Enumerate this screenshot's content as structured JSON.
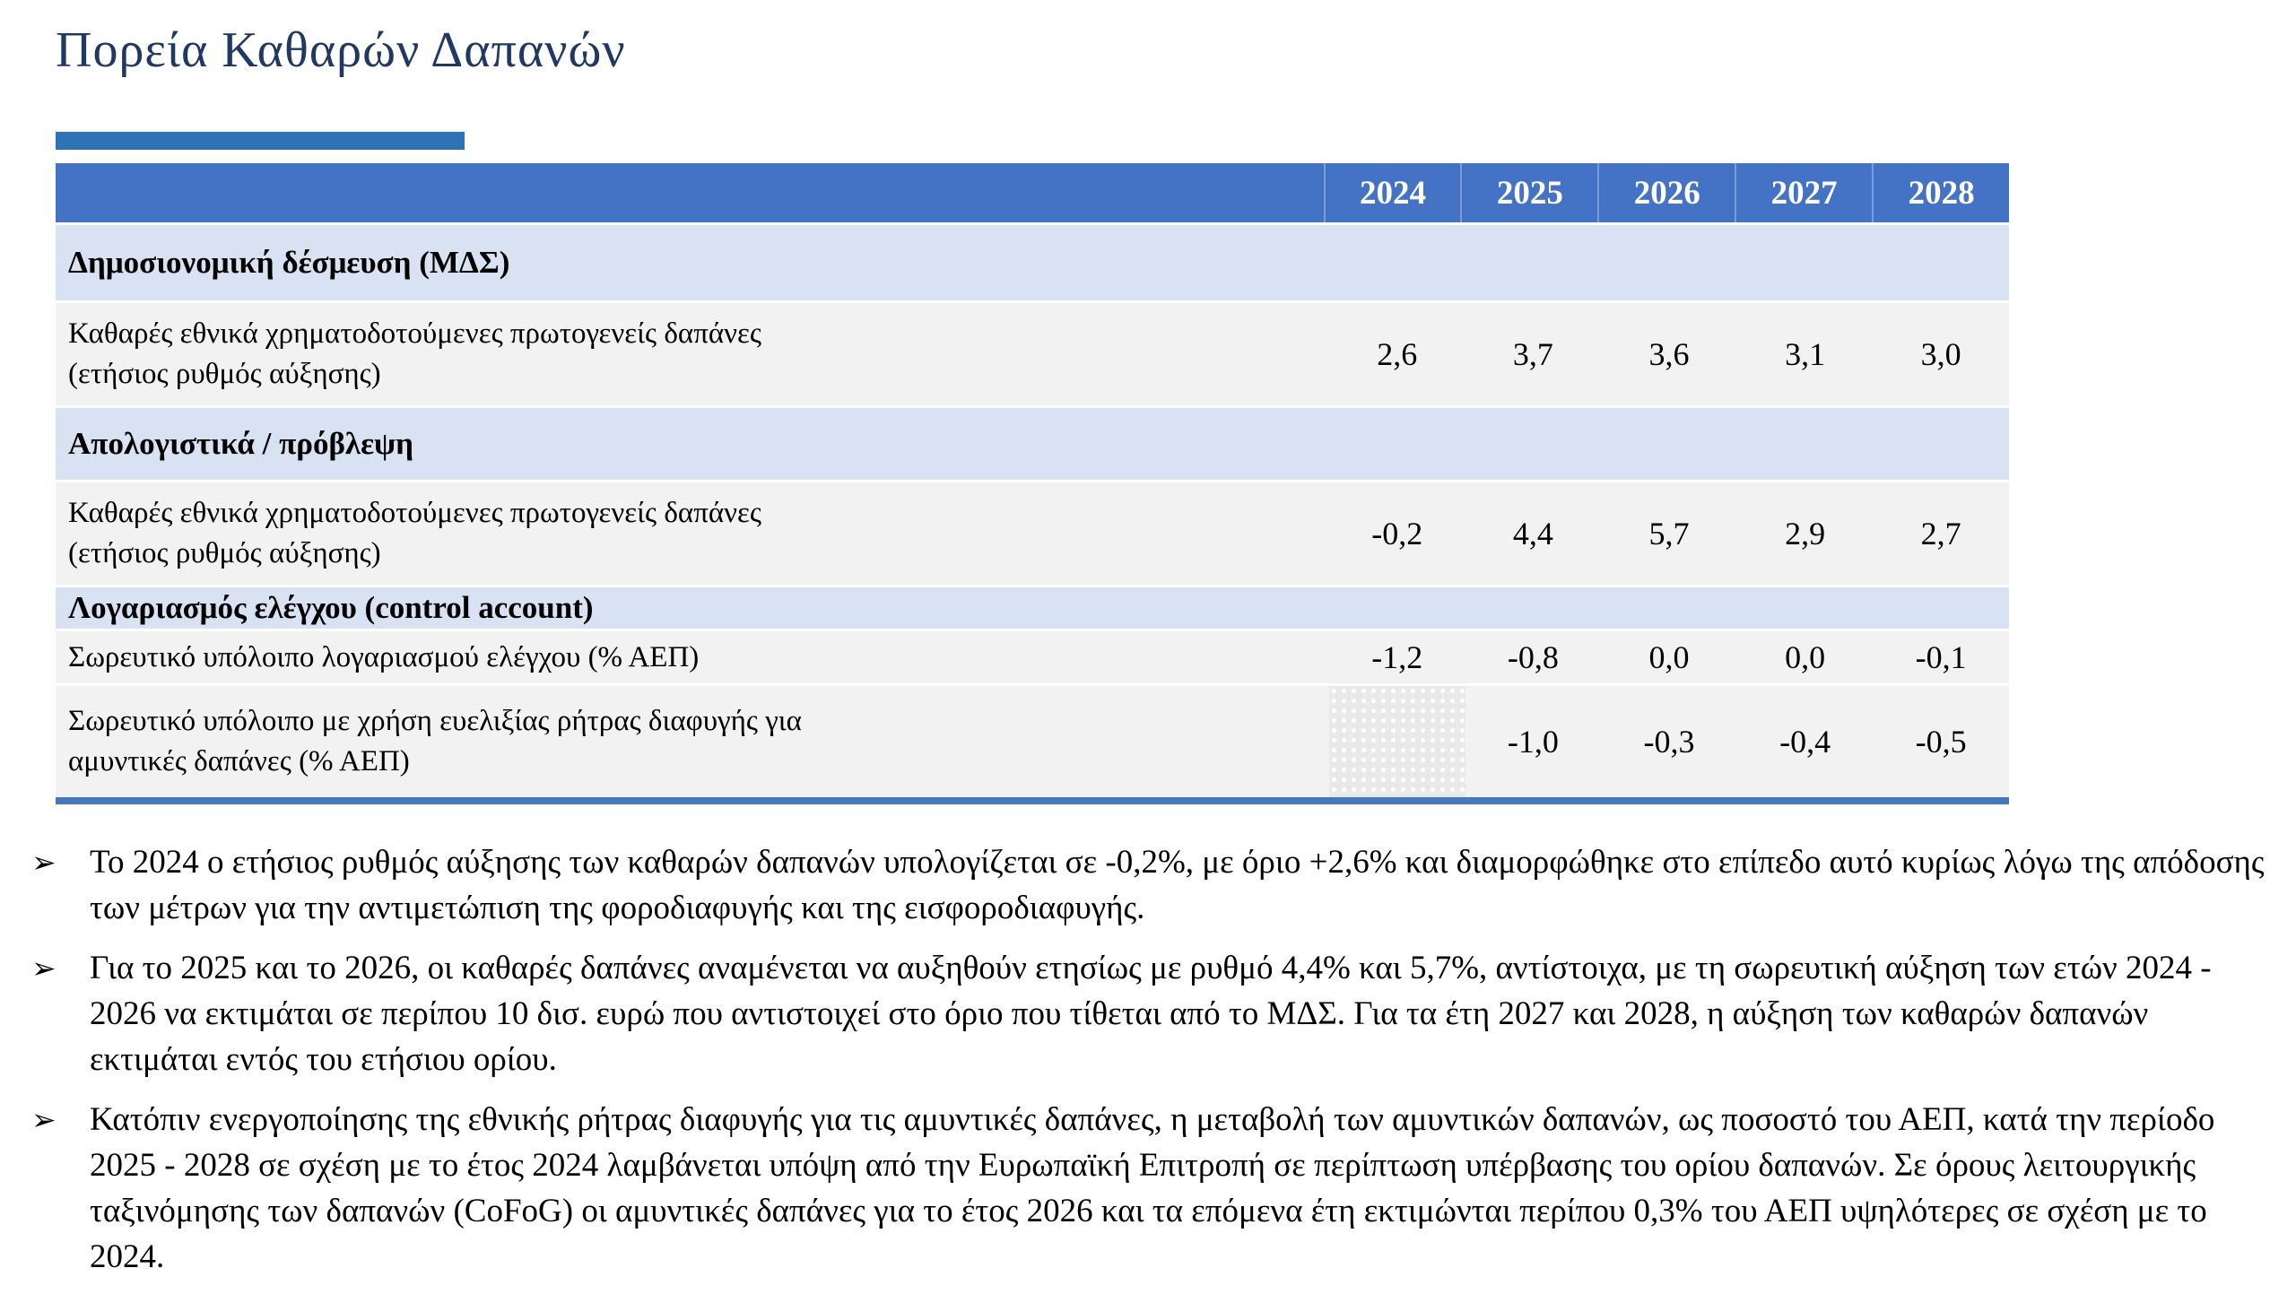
{
  "page": {
    "title": "Πορεία Καθαρών Δαπανών"
  },
  "colors": {
    "title_text": "#1F3864",
    "accent_bar": "#2E74B5",
    "table_header_bg": "#4472C4",
    "section_row_bg": "#D9E2F3",
    "data_row_bg": "#F2F2F2",
    "bottom_rule": "#4778BE",
    "hatched_cell_bg": "#E9E9E9"
  },
  "table": {
    "year_headers": [
      "2024",
      "2025",
      "2026",
      "2027",
      "2028"
    ],
    "rows": [
      {
        "type": "section",
        "label": "Δημοσιονομική δέσμευση (ΜΔΣ)"
      },
      {
        "type": "data",
        "lines": [
          "Καθαρές εθνικά χρηματοδοτούμενες πρωτογενείς δαπάνες",
          "(ετήσιος ρυθμός αύξησης)"
        ],
        "values": [
          "2,6",
          "3,7",
          "3,6",
          "3,1",
          "3,0"
        ]
      },
      {
        "type": "section",
        "label": "Απολογιστικά / πρόβλεψη"
      },
      {
        "type": "data",
        "lines": [
          "Καθαρές εθνικά χρηματοδοτούμενες πρωτογενείς δαπάνες",
          "(ετήσιος ρυθμός αύξησης)"
        ],
        "values": [
          "-0,2",
          "4,4",
          "5,7",
          "2,9",
          "2,7"
        ]
      },
      {
        "type": "section",
        "label": "Λογαριασμός ελέγχου (control account)"
      },
      {
        "type": "data",
        "lines": [
          "Σωρευτικό υπόλοιπο λογαριασμού ελέγχου (% ΑΕΠ)"
        ],
        "values": [
          "-1,2",
          "-0,8",
          "0,0",
          "0,0",
          "-0,1"
        ]
      },
      {
        "type": "data",
        "lines": [
          "Σωρευτικό υπόλοιπο με χρήση ευελιξίας ρήτρας διαφυγής για",
          "αμυντικές δαπάνες  (% ΑΕΠ)"
        ],
        "values": [
          "",
          "-1,0",
          "-0,3",
          "-0,4",
          "-0,5"
        ],
        "first_cell_fill": "dotted-hatch-no-value"
      }
    ]
  },
  "bullets": {
    "marker": "➢",
    "items": [
      {
        "text": "Το 2024 ο ετήσιος ρυθμός αύξησης των καθαρών δαπανών υπολογίζεται σε -0,2%, με όριο +2,6% και διαμορφώθηκε στο επίπεδο αυτό κυρίως λόγω της απόδοσης των μέτρων για την αντιμετώπιση της φοροδιαφυγής και της εισφοροδιαφυγής."
      },
      {
        "text": "Για το 2025 και το 2026, οι καθαρές δαπάνες αναμένεται να αυξηθούν ετησίως με ρυθμό 4,4% και 5,7%, αντίστοιχα, με τη σωρευτική αύξηση των ετών 2024 - 2026 να εκτιμάται σε περίπου 10 δισ. ευρώ που αντιστοιχεί στο όριο που τίθεται από το ΜΔΣ.  Για τα έτη 2027 και 2028, η αύξηση των καθαρών δαπανών εκτιμάται εντός του ετήσιου ορίου."
      },
      {
        "text": "Κατόπιν ενεργοποίησης της εθνικής ρήτρας διαφυγής για τις αμυντικές δαπάνες, η μεταβολή των αμυντικών δαπανών, ως ποσοστό του ΑΕΠ, κατά την περίοδο 2025 - 2028 σε σχέση με το έτος 2024 λαμβάνεται υπόψη από την Ευρωπαϊκή Επιτροπή σε περίπτωση υπέρβασης του ορίου δαπανών. Σε όρους λειτουργικής ταξινόμησης των δαπανών (CoFoG) οι αμυντικές δαπάνες για το έτος 2026 και τα επόμενα έτη εκτιμώνται περίπου 0,3% του ΑΕΠ υψηλότερες σε σχέση με το 2024."
      }
    ]
  }
}
